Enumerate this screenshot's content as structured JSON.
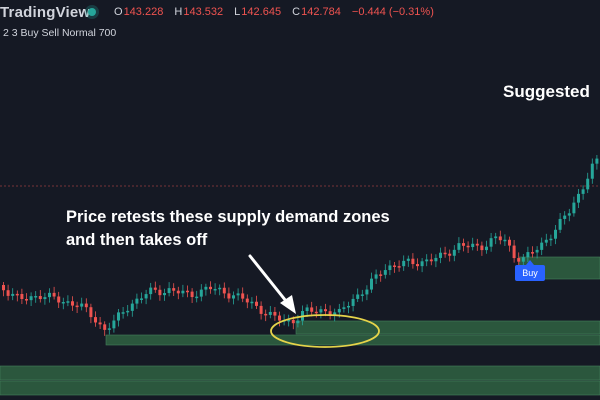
{
  "header": {
    "brand": "TradingView",
    "ohlc": [
      {
        "key": "O",
        "value": "143.228"
      },
      {
        "key": "H",
        "value": "143.532"
      },
      {
        "key": "L",
        "value": "142.645"
      },
      {
        "key": "C",
        "value": "142.784"
      },
      {
        "key": "",
        "value": "−0.444 (−0.31%)"
      }
    ],
    "indicator_label": "2 3 Buy Sell Normal 700"
  },
  "annotations": {
    "suggested": "Suggested",
    "zone_line1": "Price retests these supply demand zones",
    "zone_line2": "and then takes off",
    "buy_label": "Buy"
  },
  "colors": {
    "background": "#151924",
    "bull": "#26a69a",
    "bear": "#ef5350",
    "zone": "#2e5e40",
    "highlight": "#e6d44a",
    "buy": "#2962ff"
  }
}
